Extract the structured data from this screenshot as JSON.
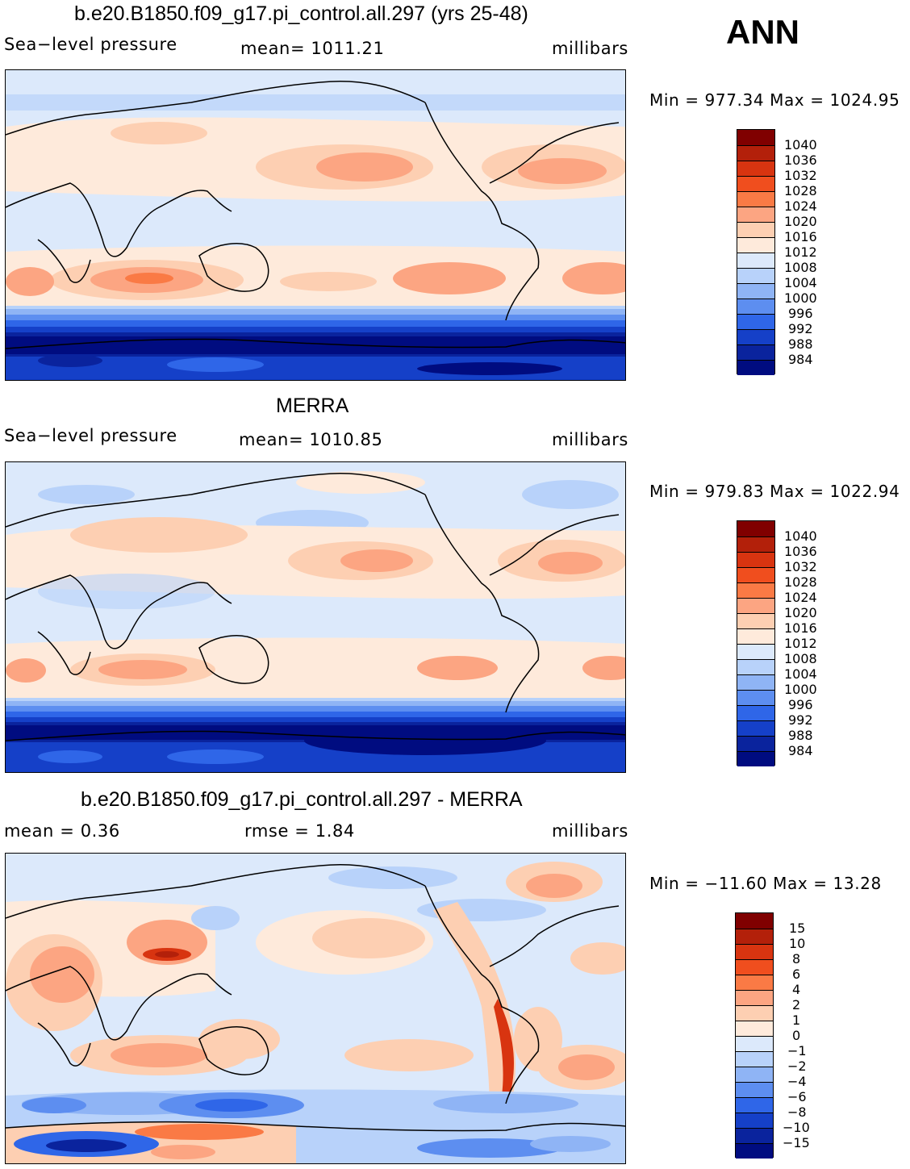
{
  "season": "ANN",
  "panels": [
    {
      "title": "b.e20.B1850.f09_g17.pi_control.all.297 (yrs 25-48)",
      "left_label": "Sea−level pressure",
      "center_label": "mean=  1011.21",
      "right_label": "millibars",
      "minmax": "Min  =  977.34  Max  =  1024.95",
      "palette": "pressure",
      "colorbar_labels": [
        "1040",
        "1036",
        "1032",
        "1028",
        "1024",
        "1020",
        "1016",
        "1012",
        "1008",
        "1004",
        "1000",
        "996",
        "992",
        "988",
        "984"
      ]
    },
    {
      "title": "MERRA",
      "left_label": "Sea−level pressure",
      "center_label": "mean=  1010.85",
      "right_label": "millibars",
      "minmax": "Min  =  979.83  Max  =  1022.94",
      "palette": "pressure",
      "colorbar_labels": [
        "1040",
        "1036",
        "1032",
        "1028",
        "1024",
        "1020",
        "1016",
        "1012",
        "1008",
        "1004",
        "1000",
        "996",
        "992",
        "988",
        "984"
      ]
    },
    {
      "title": "b.e20.B1850.f09_g17.pi_control.all.297 - MERRA",
      "left_label": "mean  =      0.36",
      "center_label": "rmse  =      1.84",
      "right_label": "millibars",
      "minmax": "Min  =  −11.60  Max  =    13.28",
      "palette": "diff",
      "colorbar_labels": [
        "15",
        "10",
        "8",
        "6",
        "4",
        "2",
        "1",
        "0",
        "−1",
        "−2",
        "−4",
        "−6",
        "−8",
        "−10",
        "−15"
      ]
    }
  ],
  "colors": {
    "pressure": [
      "#800000",
      "#b3200a",
      "#d83410",
      "#f04e1e",
      "#fa7a45",
      "#fca582",
      "#fdcfb2",
      "#feeadb",
      "#dce9fb",
      "#b8d2fa",
      "#8fb4f5",
      "#5d8ef0",
      "#2f66e8",
      "#1540c8",
      "#0a239d",
      "#000c80"
    ],
    "diff": [
      "#800000",
      "#b3200a",
      "#d83410",
      "#f04e1e",
      "#fa7a45",
      "#fca582",
      "#fdcfb2",
      "#feeadb",
      "#dce9fb",
      "#b8d2fa",
      "#8fb4f5",
      "#5d8ef0",
      "#2f66e8",
      "#1540c8",
      "#0a239d",
      "#000c80"
    ]
  }
}
